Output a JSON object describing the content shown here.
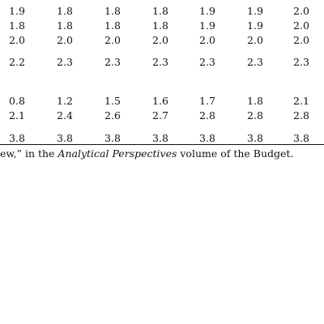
{
  "table": {
    "rows": [
      [
        "1.9",
        "1.8",
        "1.8",
        "1.8",
        "1.9",
        "1.9",
        "2.0"
      ],
      [
        "1.8",
        "1.8",
        "1.8",
        "1.8",
        "1.9",
        "1.9",
        "2.0"
      ],
      [
        "2.0",
        "2.0",
        "2.0",
        "2.0",
        "2.0",
        "2.0",
        "2.0"
      ],
      [
        "2.2",
        "2.3",
        "2.3",
        "2.3",
        "2.3",
        "2.3",
        "2.3"
      ],
      [
        "0.8",
        "1.2",
        "1.5",
        "1.6",
        "1.7",
        "1.8",
        "2.1"
      ],
      [
        "2.1",
        "2.4",
        "2.6",
        "2.7",
        "2.8",
        "2.8",
        "2.8"
      ],
      [
        "3.8",
        "3.8",
        "3.8",
        "3.8",
        "3.8",
        "3.8",
        "3.8"
      ]
    ]
  },
  "footnote": {
    "before": "ew,” in the ",
    "italic": "Analytical Perspectives",
    "after": " volume of the Budget."
  }
}
